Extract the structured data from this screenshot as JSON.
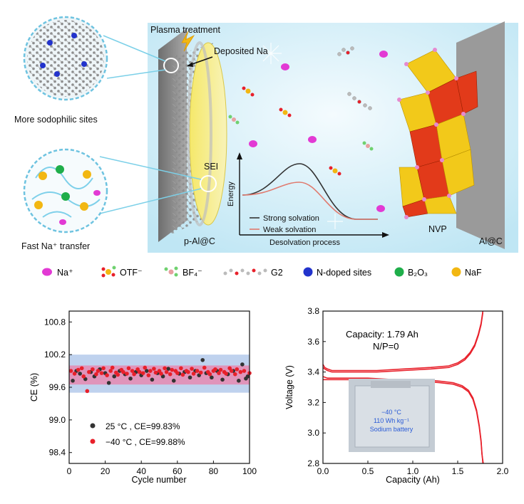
{
  "schematic": {
    "plasma_treatment": "Plasma treatment",
    "deposited_na": "Deposited Na",
    "sodophilic_caption": "More sodophilic sites",
    "transfer_caption": "Fast Na⁺ transfer",
    "sei": "SEI",
    "anode": "p-Al@C",
    "cathode_material": "NVP",
    "cathode": "Al@C",
    "inset": {
      "ylabel": "Energy",
      "xlabel": "Desolvation process",
      "legend": [
        "Strong solvation",
        "Weak solvation"
      ],
      "colors": {
        "strong": "#333333",
        "weak": "#e07a6e"
      }
    }
  },
  "legend": {
    "na": "Na⁺",
    "otf": "OTF⁻",
    "bf4": "BF₄⁻",
    "g2": "G2",
    "ndoped": "N-doped sites",
    "b2o3": "B₂O₃",
    "naf": "NaF",
    "colors": {
      "na": "#e23ad4",
      "ndoped": "#2233cc",
      "b2o3": "#1fae4a",
      "naf": "#f2b712"
    }
  },
  "chart_data": [
    {
      "type": "scatter",
      "xlabel": "Cycle number",
      "ylabel": "CE (%)",
      "xlim": [
        0,
        100
      ],
      "ylim": [
        98.2,
        101.0
      ],
      "xticks": [
        "0",
        "20",
        "40",
        "60",
        "80",
        "100"
      ],
      "yticks": [
        "98.4",
        "99.0",
        "99.6",
        "100.2",
        "100.8"
      ],
      "bands": [
        {
          "range": [
            99.5,
            100.2
          ],
          "color": "#a9c3e8"
        },
        {
          "range": [
            99.65,
            100.0
          ],
          "color": "#e58ab0"
        }
      ],
      "legend": [
        "25 °C , CE=99.83%",
        "−40 °C , CE=99.88%"
      ],
      "series": [
        {
          "name": "25 °C , CE=99.83%",
          "color": "#333333",
          "x": [
            2,
            4,
            6,
            9,
            12,
            14,
            17,
            20,
            22,
            25,
            28,
            31,
            34,
            37,
            40,
            43,
            46,
            49,
            52,
            55,
            58,
            61,
            64,
            67,
            70,
            72,
            74,
            76,
            79,
            82,
            85,
            88,
            91,
            94,
            96,
            98,
            99
          ],
          "y": [
            99.72,
            99.9,
            99.85,
            99.75,
            99.88,
            99.8,
            99.93,
            99.86,
            99.68,
            99.8,
            99.9,
            99.84,
            99.76,
            99.88,
            99.82,
            99.9,
            99.74,
            99.86,
            99.8,
            99.94,
            99.72,
            99.85,
            99.88,
            99.78,
            99.9,
            99.82,
            100.1,
            99.86,
            99.78,
            99.9,
            99.74,
            99.84,
            99.9,
            99.72,
            100.02,
            99.76,
            99.8
          ]
        },
        {
          "name": "−40 °C , CE=99.88%",
          "color": "#e8202a",
          "x": [
            1,
            3,
            5,
            7,
            8,
            10,
            11,
            13,
            15,
            16,
            18,
            19,
            21,
            23,
            24,
            26,
            27,
            29,
            30,
            32,
            33,
            35,
            36,
            38,
            39,
            41,
            42,
            44,
            45,
            47,
            48,
            50,
            51,
            53,
            54,
            56,
            57,
            59,
            60,
            62,
            63,
            65,
            66,
            68,
            69,
            71,
            73,
            75,
            77,
            78,
            80,
            81,
            83,
            84,
            86,
            87,
            89,
            90,
            92,
            93,
            95,
            97,
            100
          ],
          "y": [
            99.9,
            99.85,
            99.92,
            99.95,
            99.8,
            99.53,
            99.88,
            99.93,
            99.84,
            99.9,
            99.86,
            99.95,
            99.82,
            99.9,
            99.96,
            99.87,
            99.83,
            99.92,
            99.88,
            99.85,
            99.95,
            99.9,
            99.84,
            99.93,
            99.88,
            99.86,
            99.96,
            99.82,
            99.9,
            99.94,
            99.87,
            99.9,
            99.85,
            99.95,
            99.88,
            99.84,
            99.92,
            99.9,
            99.86,
            99.95,
            99.83,
            99.9,
            99.88,
            99.94,
            99.85,
            99.9,
            99.87,
            99.96,
            99.88,
            99.84,
            99.9,
            99.93,
            99.86,
            99.92,
            99.88,
            99.85,
            99.95,
            99.9,
            99.84,
            99.93,
            99.88,
            99.9,
            99.86
          ]
        }
      ]
    },
    {
      "type": "line",
      "xlabel": "Capacity (Ah)",
      "ylabel": "Voltage (V)",
      "xlim": [
        0.0,
        2.0
      ],
      "ylim": [
        2.8,
        3.8
      ],
      "xticks": [
        "0.0",
        "0.5",
        "1.0",
        "1.5",
        "2.0"
      ],
      "yticks": [
        "2.8",
        "3.0",
        "3.2",
        "3.4",
        "3.6",
        "3.8"
      ],
      "annotation": [
        "Capacity: 1.79 Ah",
        "N/P=0"
      ],
      "photo_text": [
        "−40 °C",
        "110 Wh kg⁻¹",
        "Sodium battery"
      ],
      "series": [
        {
          "name": "charge",
          "color": "#e8202a",
          "x": [
            0.0,
            0.02,
            0.05,
            0.1,
            0.3,
            0.6,
            0.9,
            1.2,
            1.4,
            1.5,
            1.58,
            1.64,
            1.69,
            1.73,
            1.76,
            1.78
          ],
          "y": [
            3.45,
            3.43,
            3.42,
            3.41,
            3.41,
            3.41,
            3.42,
            3.43,
            3.44,
            3.46,
            3.49,
            3.53,
            3.58,
            3.65,
            3.72,
            3.8
          ]
        },
        {
          "name": "charge-2",
          "color": "#e8202a",
          "x": [
            0.0,
            0.02,
            0.05,
            0.1,
            0.3,
            0.6,
            0.9,
            1.2,
            1.4,
            1.5,
            1.58,
            1.64,
            1.69,
            1.73,
            1.76,
            1.78
          ],
          "y": [
            3.43,
            3.42,
            3.41,
            3.4,
            3.4,
            3.4,
            3.41,
            3.42,
            3.43,
            3.45,
            3.48,
            3.52,
            3.57,
            3.64,
            3.71,
            3.79
          ]
        },
        {
          "name": "discharge",
          "color": "#e8202a",
          "x": [
            0.0,
            0.05,
            0.2,
            0.5,
            0.8,
            1.1,
            1.3,
            1.45,
            1.55,
            1.62,
            1.67,
            1.71,
            1.74,
            1.76,
            1.77,
            1.78
          ],
          "y": [
            3.37,
            3.36,
            3.36,
            3.36,
            3.35,
            3.35,
            3.34,
            3.33,
            3.31,
            3.28,
            3.23,
            3.15,
            3.05,
            2.95,
            2.87,
            2.8
          ]
        },
        {
          "name": "discharge-2",
          "color": "#e8202a",
          "x": [
            0.0,
            0.05,
            0.2,
            0.5,
            0.8,
            1.1,
            1.3,
            1.45,
            1.55,
            1.62,
            1.67,
            1.71,
            1.74,
            1.76,
            1.77,
            1.785
          ],
          "y": [
            3.35,
            3.35,
            3.35,
            3.35,
            3.34,
            3.34,
            3.33,
            3.32,
            3.3,
            3.27,
            3.22,
            3.14,
            3.04,
            2.94,
            2.86,
            2.8
          ]
        }
      ]
    }
  ]
}
